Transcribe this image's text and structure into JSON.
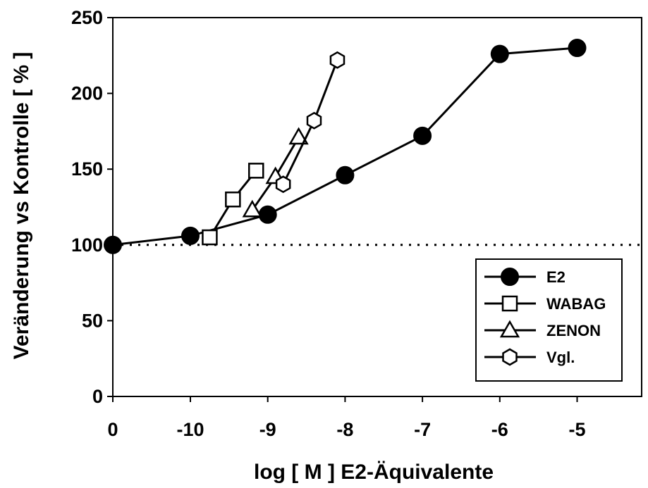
{
  "chart_data": {
    "type": "line",
    "xlabel": "log [ M ] E2-Äquivalente",
    "ylabel": "Veränderung vs Kontrolle [ % ]",
    "xlim": [
      0,
      -5.85
    ],
    "ylim": [
      0,
      250
    ],
    "x_ticks": [
      0,
      -10,
      -9,
      -8,
      -7,
      -6,
      -5
    ],
    "x_tick_labels": [
      "0",
      "-10",
      "-9",
      "-8",
      "-7",
      "-6",
      "-5"
    ],
    "y_ticks": [
      0,
      50,
      100,
      150,
      200,
      250
    ],
    "y_tick_labels": [
      "0",
      "50",
      "100",
      "150",
      "200",
      "250"
    ],
    "reference_line": {
      "y": 100,
      "style": "dotted"
    },
    "grid": false,
    "legend_position": "bottom-right",
    "series": [
      {
        "name": "E2",
        "marker": "filled-circle",
        "points": [
          {
            "x": 0,
            "y": 100
          },
          {
            "x": -10,
            "y": 106
          },
          {
            "x": -9,
            "y": 120
          },
          {
            "x": -8,
            "y": 146
          },
          {
            "x": -7,
            "y": 172
          },
          {
            "x": -6,
            "y": 226
          },
          {
            "x": -5,
            "y": 230
          }
        ]
      },
      {
        "name": "WABAG",
        "marker": "open-square",
        "points": [
          {
            "x": -9.75,
            "y": 105
          },
          {
            "x": -9.45,
            "y": 130
          },
          {
            "x": -9.15,
            "y": 149
          }
        ]
      },
      {
        "name": "ZENON",
        "marker": "open-triangle",
        "points": [
          {
            "x": -9.2,
            "y": 123
          },
          {
            "x": -8.9,
            "y": 145
          },
          {
            "x": -8.6,
            "y": 171
          }
        ]
      },
      {
        "name": "Vgl.",
        "marker": "open-hexagon",
        "points": [
          {
            "x": -8.8,
            "y": 140
          },
          {
            "x": -8.4,
            "y": 182
          },
          {
            "x": -8.1,
            "y": 222
          }
        ]
      }
    ]
  }
}
